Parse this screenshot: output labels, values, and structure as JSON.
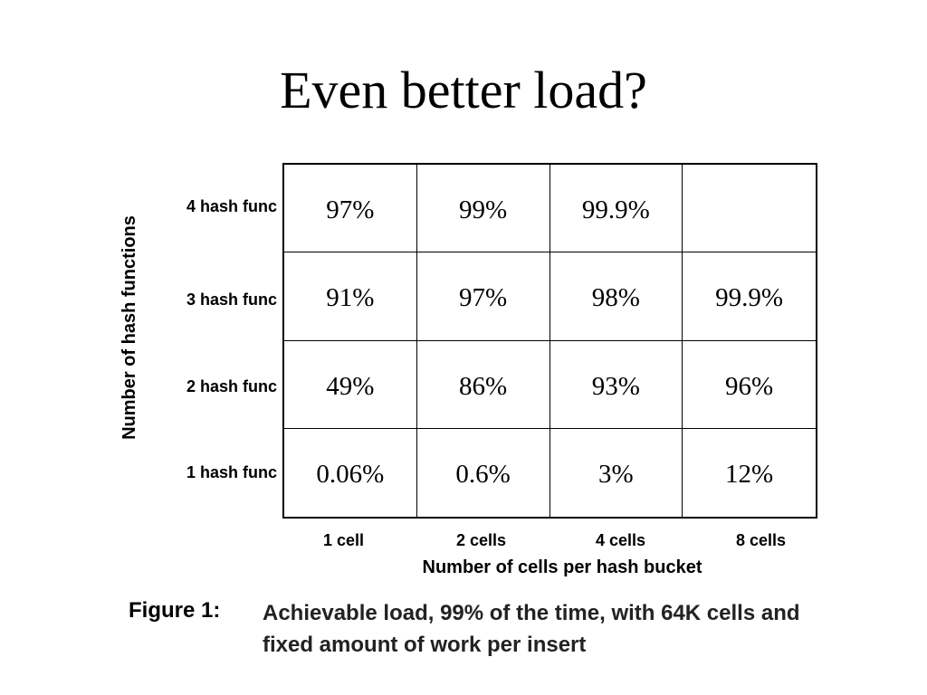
{
  "slide": {
    "title": "Even better load?"
  },
  "figure": {
    "y_axis_label": "Number of hash functions",
    "x_axis_label": "Number of cells per hash bucket",
    "row_labels": [
      "4 hash func",
      "3 hash func",
      "2 hash func",
      "1 hash func"
    ],
    "col_labels": [
      "1 cell",
      "2 cells",
      "4 cells",
      "8 cells"
    ],
    "cells": [
      [
        "97%",
        "99%",
        "99.9%",
        ""
      ],
      [
        "91%",
        "97%",
        "98%",
        "99.9%"
      ],
      [
        "49%",
        "86%",
        "93%",
        "96%"
      ],
      [
        "0.06%",
        "0.6%",
        "3%",
        "12%"
      ]
    ],
    "caption_prefix": "Figure 1:",
    "caption_text": "Achievable load, 99% of the time, with 64K cells and fixed amount of work per insert"
  }
}
